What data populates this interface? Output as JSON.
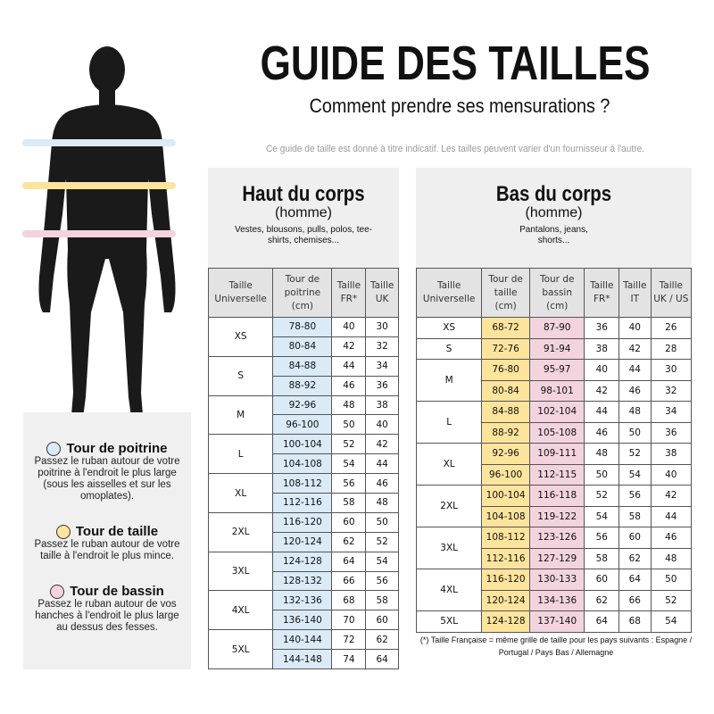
{
  "title": "GUIDE DES TAILLES",
  "subtitle": "Comment prendre ses mensurations ?",
  "note": "Ce guide de taille est donné à titre indicatif. Les tailles peuvent varier d'un fournisseur à l'autre.",
  "colors": {
    "chest": "#daeaf7",
    "waist": "#fde49c",
    "hips": "#f2d3de"
  },
  "top": {
    "heading": "Haut du corps",
    "sub": "(homme)",
    "desc": "Vestes, blousons, pulls, polos, tee-shirts, chemises...",
    "headers": [
      "Taille Universelle",
      "Tour de poitrine (cm)",
      "Taille FR*",
      "Taille UK"
    ],
    "groups": [
      {
        "size": "XS",
        "rows": [
          [
            "78-80",
            "40",
            "30"
          ],
          [
            "80-84",
            "42",
            "32"
          ]
        ]
      },
      {
        "size": "S",
        "rows": [
          [
            "84-88",
            "44",
            "34"
          ],
          [
            "88-92",
            "46",
            "36"
          ]
        ]
      },
      {
        "size": "M",
        "rows": [
          [
            "92-96",
            "48",
            "38"
          ],
          [
            "96-100",
            "50",
            "40"
          ]
        ]
      },
      {
        "size": "L",
        "rows": [
          [
            "100-104",
            "52",
            "42"
          ],
          [
            "104-108",
            "54",
            "44"
          ]
        ]
      },
      {
        "size": "XL",
        "rows": [
          [
            "108-112",
            "56",
            "46"
          ],
          [
            "112-116",
            "58",
            "48"
          ]
        ]
      },
      {
        "size": "2XL",
        "rows": [
          [
            "116-120",
            "60",
            "50"
          ],
          [
            "120-124",
            "62",
            "52"
          ]
        ]
      },
      {
        "size": "3XL",
        "rows": [
          [
            "124-128",
            "64",
            "54"
          ],
          [
            "128-132",
            "66",
            "56"
          ]
        ]
      },
      {
        "size": "4XL",
        "rows": [
          [
            "132-136",
            "68",
            "58"
          ],
          [
            "136-140",
            "70",
            "60"
          ]
        ]
      },
      {
        "size": "5XL",
        "rows": [
          [
            "140-144",
            "72",
            "62"
          ],
          [
            "144-148",
            "74",
            "64"
          ]
        ]
      }
    ]
  },
  "bottom": {
    "heading": "Bas du corps",
    "sub": "(homme)",
    "desc": "Pantalons, jeans, shorts...",
    "headers": [
      "Taille Universelle",
      "Tour de taille (cm)",
      "Tour de bassin (cm)",
      "Taille FR*",
      "Taille IT",
      "Taille UK / US"
    ],
    "groups": [
      {
        "size": "XS",
        "rows": [
          [
            "68-72",
            "87-90",
            "36",
            "40",
            "26"
          ]
        ]
      },
      {
        "size": "S",
        "rows": [
          [
            "72-76",
            "91-94",
            "38",
            "42",
            "28"
          ]
        ]
      },
      {
        "size": "M",
        "rows": [
          [
            "76-80",
            "95-97",
            "40",
            "44",
            "30"
          ],
          [
            "80-84",
            "98-101",
            "42",
            "46",
            "32"
          ]
        ]
      },
      {
        "size": "L",
        "rows": [
          [
            "84-88",
            "102-104",
            "44",
            "48",
            "34"
          ],
          [
            "88-92",
            "105-108",
            "46",
            "50",
            "36"
          ]
        ]
      },
      {
        "size": "XL",
        "rows": [
          [
            "92-96",
            "109-111",
            "48",
            "52",
            "38"
          ],
          [
            "96-100",
            "112-115",
            "50",
            "54",
            "40"
          ]
        ]
      },
      {
        "size": "2XL",
        "rows": [
          [
            "100-104",
            "116-118",
            "52",
            "56",
            "42"
          ],
          [
            "104-108",
            "119-122",
            "54",
            "58",
            "44"
          ]
        ]
      },
      {
        "size": "3XL",
        "rows": [
          [
            "108-112",
            "123-126",
            "56",
            "60",
            "46"
          ],
          [
            "112-116",
            "127-129",
            "58",
            "62",
            "48"
          ]
        ]
      },
      {
        "size": "4XL",
        "rows": [
          [
            "116-120",
            "130-133",
            "60",
            "64",
            "50"
          ],
          [
            "120-124",
            "134-136",
            "62",
            "66",
            "52"
          ]
        ]
      },
      {
        "size": "5XL",
        "rows": [
          [
            "124-128",
            "137-140",
            "64",
            "68",
            "54"
          ]
        ]
      }
    ]
  },
  "legend": [
    {
      "title": "Tour de poitrine",
      "text": "Passez le ruban autour de votre poitrine à l'endroit le plus large (sous les aisselles et sur les omoplates)."
    },
    {
      "title": "Tour de taille",
      "text": "Passez le ruban autour de votre taille à l'endroit le plus mince."
    },
    {
      "title": "Tour de bassin",
      "text": "Passez le ruban autour de vos hanches à l'endroit le plus large au dessus des fesses."
    }
  ],
  "footnote": "(*) Taille Française = même grille de taille pour les pays suivants : Espagne / Portugal / Pays Bas / Allemagne"
}
